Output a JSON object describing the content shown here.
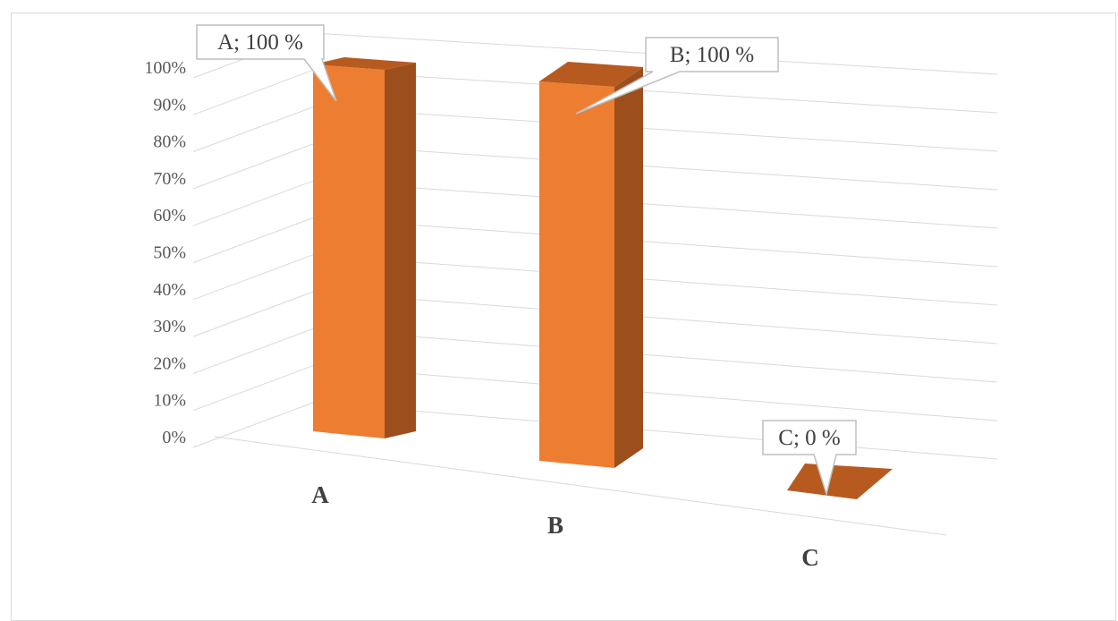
{
  "chart_data": {
    "type": "bar",
    "categories": [
      "A",
      "B",
      "C"
    ],
    "values": [
      100,
      100,
      0
    ],
    "ylim": [
      0,
      100
    ],
    "y_ticks": [
      "0%",
      "10%",
      "20%",
      "30%",
      "40%",
      "50%",
      "60%",
      "70%",
      "80%",
      "90%",
      "100%"
    ],
    "data_labels": [
      "A; 100 %",
      "B; 100 %",
      "C; 0 %"
    ],
    "grid": true,
    "legend": "none",
    "colors": {
      "bar_front": "#ED7D31",
      "bar_side": "#9C4F1C",
      "bar_top": "#B65A20",
      "grid": "#d9d9d9",
      "callout_border": "#bfbfbf"
    }
  }
}
